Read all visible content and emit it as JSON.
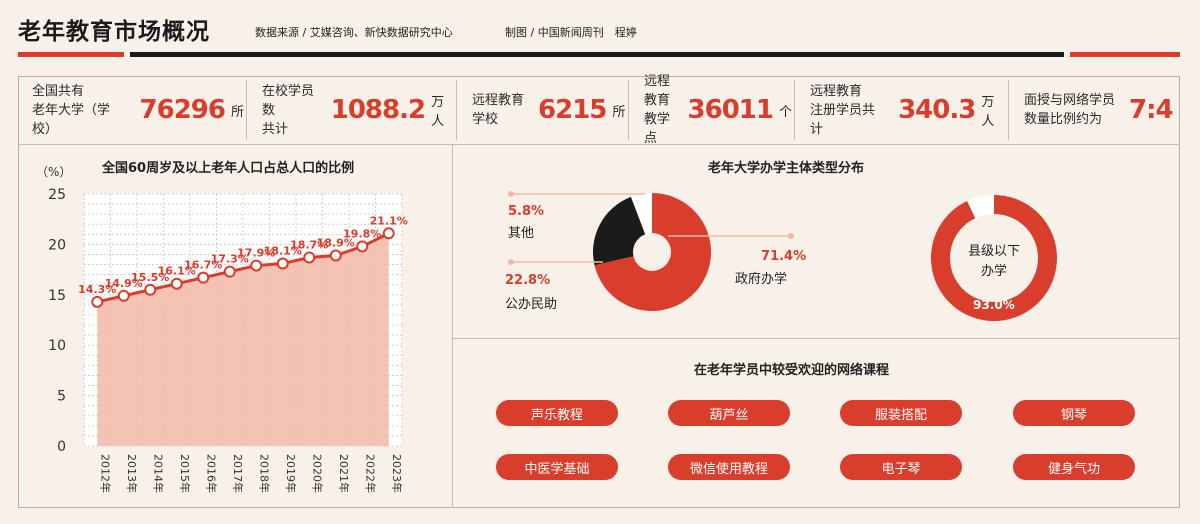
{
  "header": {
    "title": "老年教育市场概况",
    "source": "数据来源 / 艾媒咨询、新快数据研究中心",
    "credit": "制图 / 中国新闻周刊　程婷"
  },
  "colors": {
    "accent": "#d93d2b",
    "dark": "#1b1b1b",
    "area": "#f3b9a6",
    "background": "#f8f1ea"
  },
  "stats": [
    {
      "label": "全国共有\n老年大学（学校）",
      "value": "76296",
      "unit": "所"
    },
    {
      "label": "在校学员数\n共计",
      "value": "1088.2",
      "unit": "万人"
    },
    {
      "label": "远程教育\n学校",
      "value": "6215",
      "unit": "所"
    },
    {
      "label": "远程教育\n教学点",
      "value": "36011",
      "unit": "个"
    },
    {
      "label": "远程教育\n注册学员共计",
      "value": "340.3",
      "unit": "万人"
    },
    {
      "label": "面授与网络学员\n数量比例约为",
      "value": "7:4",
      "unit": ""
    }
  ],
  "chart_data": [
    {
      "type": "area",
      "title": "全国60周岁及以上老年人口占总人口的比例",
      "ylabel": "（%）",
      "ylim": [
        0,
        25
      ],
      "yticks": [
        0,
        5,
        10,
        15,
        20,
        25
      ],
      "categories": [
        "2012年",
        "2013年",
        "2014年",
        "2015年",
        "2016年",
        "2017年",
        "2018年",
        "2019年",
        "2020年",
        "2021年",
        "2022年",
        "2023年"
      ],
      "values": [
        14.3,
        14.9,
        15.5,
        16.1,
        16.7,
        17.3,
        17.9,
        18.1,
        18.7,
        18.9,
        19.8,
        21.1
      ],
      "value_labels": [
        "14.3%",
        "14.9%",
        "15.5%",
        "16.1%",
        "16.7%",
        "17.3%",
        "17.9%",
        "18.1%",
        "18.7%",
        "18.9%",
        "19.8%",
        "21.1%"
      ],
      "grid": true
    },
    {
      "type": "pie",
      "title": "老年大学办学主体类型分布",
      "slices": [
        {
          "name": "政府办学",
          "value": 71.4,
          "label": "71.4%",
          "color": "#d93d2b"
        },
        {
          "name": "公办民助",
          "value": 22.8,
          "label": "22.8%",
          "color": "#1b1b1b"
        },
        {
          "name": "其他",
          "value": 5.8,
          "label": "5.8%",
          "color": "#ffffff"
        }
      ]
    },
    {
      "type": "pie",
      "center_label": [
        "县级以下",
        "办学"
      ],
      "slices": [
        {
          "name": "县级以下办学",
          "value": 93.0,
          "label": "93.0%",
          "color": "#d93d2b"
        },
        {
          "name": "",
          "value": 7.0,
          "label": "",
          "color": "#ffffff"
        }
      ]
    }
  ],
  "courses": {
    "title": "在老年学员中较受欢迎的网络课程",
    "items": [
      "声乐教程",
      "葫芦丝",
      "服装搭配",
      "钢琴",
      "中医学基础",
      "微信使用教程",
      "电子琴",
      "健身气功"
    ]
  }
}
